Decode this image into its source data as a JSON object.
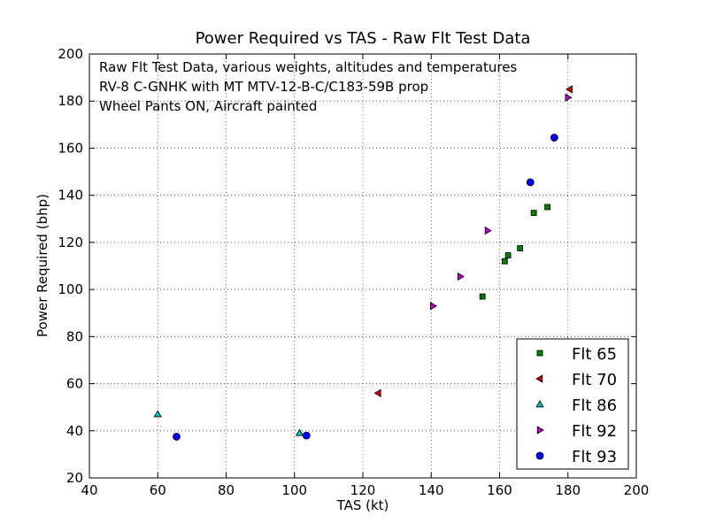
{
  "chart_data": {
    "type": "scatter",
    "title": "Power Required vs TAS - Raw Flt Test Data",
    "xlabel": "TAS (kt)",
    "ylabel": "Power Required (bhp)",
    "xlim": [
      40,
      200
    ],
    "ylim": [
      20,
      200
    ],
    "xticks": [
      40,
      60,
      80,
      100,
      120,
      140,
      160,
      180,
      200
    ],
    "yticks": [
      20,
      40,
      60,
      80,
      100,
      120,
      140,
      160,
      180,
      200
    ],
    "grid": true,
    "legend_position": "bottom-right",
    "annotations": [
      "Raw Flt Test Data, various weights, altitudes and temperatures",
      "RV-8 C-GNHK with MT MTV-12-B-C/C183-59B prop",
      "Wheel Pants ON, Aircraft painted"
    ],
    "series": [
      {
        "name": "Flt 65",
        "marker": "square",
        "color": "#008000",
        "x": [
          155,
          161.5,
          162.5,
          166,
          170,
          174
        ],
        "y": [
          97,
          112,
          114.5,
          117.5,
          132.5,
          135
        ]
      },
      {
        "name": "Flt 70",
        "marker": "triangle-left",
        "color": "#cc0000",
        "x": [
          124.5,
          180.5
        ],
        "y": [
          56,
          185
        ]
      },
      {
        "name": "Flt 86",
        "marker": "triangle-up",
        "color": "#00bfbf",
        "x": [
          60,
          101.5
        ],
        "y": [
          47,
          39
        ]
      },
      {
        "name": "Flt 92",
        "marker": "triangle-right",
        "color": "#bf00bf",
        "x": [
          140.5,
          148.5,
          156.5,
          180
        ],
        "y": [
          93,
          105.5,
          125,
          181.5
        ]
      },
      {
        "name": "Flt 93",
        "marker": "circle",
        "color": "#0000ff",
        "x": [
          65.5,
          103.5,
          169,
          176
        ],
        "y": [
          37.5,
          38,
          145.5,
          164.5
        ]
      }
    ]
  }
}
